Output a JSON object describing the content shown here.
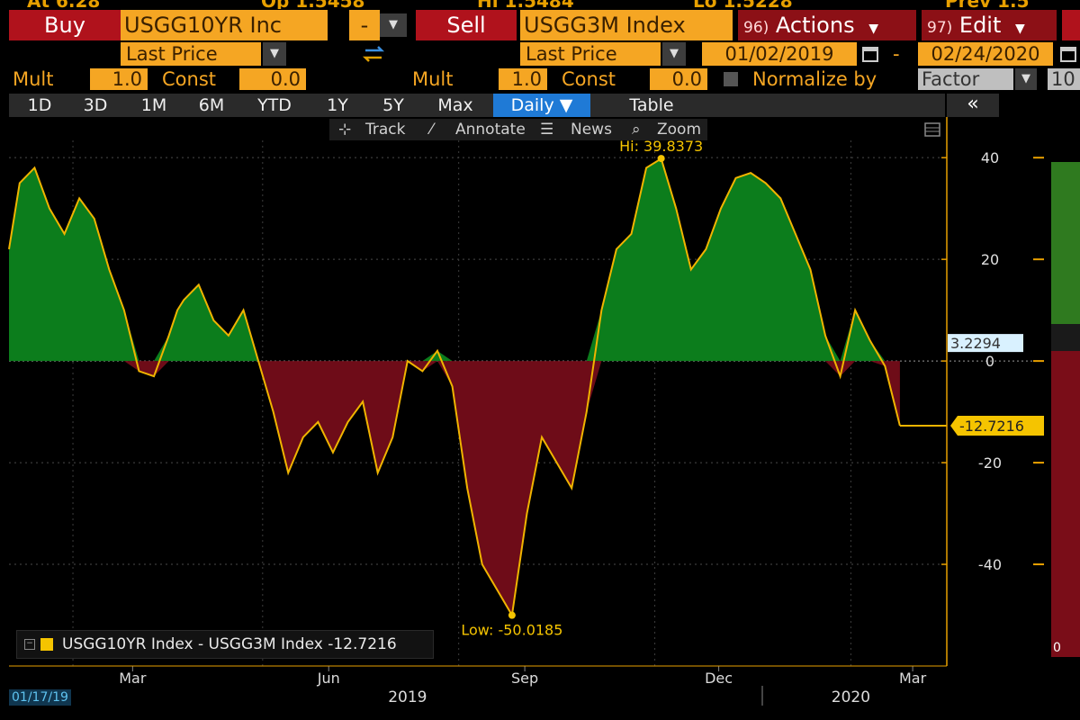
{
  "top_strip": [
    "At 6.28",
    "Op 1.5458",
    "Hi 1.5484",
    "Lo 1.5228",
    "Prev 1.5"
  ],
  "buy": {
    "label": "Buy",
    "ticker": "USGG10YR Inc",
    "minus": "-",
    "field": "Last Price"
  },
  "sell": {
    "label": "Sell",
    "ticker": "USGG3M Index",
    "field": "Last Price"
  },
  "actions": {
    "num": "96)",
    "label": "Actions"
  },
  "edit": {
    "num": "97)",
    "label": "Edit"
  },
  "dates": {
    "start": "01/02/2019",
    "end": "02/24/2020",
    "dash": "-"
  },
  "mult_left": {
    "mult_label": "Mult",
    "mult": "1.0",
    "const_label": "Const",
    "const": "0.0"
  },
  "mult_right": {
    "mult_label": "Mult",
    "mult": "1.0",
    "const_label": "Const",
    "const": "0.0"
  },
  "normalize": {
    "label": "Normalize by",
    "value": "Factor",
    "amount": "10"
  },
  "tabs": [
    "1D",
    "3D",
    "1M",
    "6M",
    "YTD",
    "1Y",
    "5Y",
    "Max",
    "Daily ▼",
    "Table"
  ],
  "collapse": "«",
  "toolbar": {
    "track": "Track",
    "annotate": "Annotate",
    "news": "News",
    "zoom": "Zoom"
  },
  "legend": "USGG10YR Index - USGG3M Index -12.7216",
  "start_date_label": "01/17/19",
  "colors": {
    "positive": "#0c7d1c",
    "negative": "#6e0c18",
    "line": "#f0b400",
    "accent": "#f5a623"
  },
  "chart_data": {
    "type": "area",
    "x_labels": [
      "Mar",
      "Jun",
      "Sep",
      "Dec",
      "Mar"
    ],
    "year_labels": [
      "2019",
      "2020"
    ],
    "ylim": [
      -60,
      48
    ],
    "yticks": [
      40,
      20,
      0,
      -20,
      -40
    ],
    "current_value": "-12.7216",
    "secondary_value": "3.2294",
    "hi_label": "Hi: 39.8373",
    "low_label": "Low: -50.0185",
    "hi_value": 39.8373,
    "low_value": -50.0185,
    "series": [
      {
        "x": [
          "2019-01-02",
          "2019-01-07",
          "2019-01-14",
          "2019-01-21",
          "2019-01-28",
          "2019-02-04",
          "2019-02-11",
          "2019-02-18",
          "2019-02-25",
          "2019-03-04",
          "2019-03-11",
          "2019-03-18",
          "2019-03-22",
          "2019-03-25",
          "2019-04-01",
          "2019-04-08",
          "2019-04-15",
          "2019-04-22",
          "2019-04-29",
          "2019-05-06",
          "2019-05-13",
          "2019-05-20",
          "2019-05-27",
          "2019-06-03",
          "2019-06-10",
          "2019-06-17",
          "2019-06-24",
          "2019-07-01",
          "2019-07-08",
          "2019-07-15",
          "2019-07-22",
          "2019-07-29",
          "2019-08-05",
          "2019-08-12",
          "2019-08-19",
          "2019-08-26",
          "2019-09-02",
          "2019-09-09",
          "2019-09-16",
          "2019-09-23",
          "2019-09-30",
          "2019-10-07",
          "2019-10-14",
          "2019-10-21",
          "2019-10-28",
          "2019-11-04",
          "2019-11-11",
          "2019-11-18",
          "2019-11-25",
          "2019-12-02",
          "2019-12-09",
          "2019-12-16",
          "2019-12-23",
          "2019-12-30",
          "2020-01-06",
          "2020-01-13",
          "2020-01-20",
          "2020-01-27",
          "2020-02-03",
          "2020-02-10",
          "2020-02-17",
          "2020-02-24"
        ],
        "y": [
          22,
          35,
          38,
          30,
          25,
          32,
          28,
          18,
          10,
          -2,
          -3,
          5,
          10,
          12,
          15,
          8,
          5,
          10,
          0,
          -10,
          -22,
          -15,
          -12,
          -18,
          -12,
          -8,
          -22,
          -15,
          0,
          -2,
          2,
          -5,
          -25,
          -40,
          -45,
          -50,
          -30,
          -15,
          -20,
          -25,
          -10,
          10,
          22,
          25,
          38,
          39.8,
          30,
          18,
          22,
          30,
          36,
          37,
          35,
          32,
          25,
          18,
          5,
          -3,
          10,
          4,
          -1,
          -12.7216
        ]
      }
    ]
  }
}
